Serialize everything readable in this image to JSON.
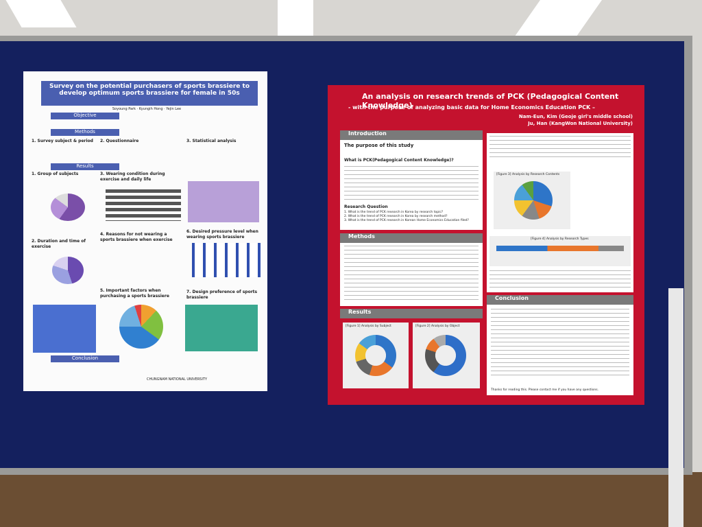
{
  "left_poster": {
    "title": "Survey on the potential purchasers of sports brassiere to develop optimum sports brassiere for female in 50s",
    "authors": "Soyoung Park · Kyungih Hong · Yejin Lee",
    "sections": [
      "Objective",
      "Methods",
      "Results",
      "Conclusion"
    ],
    "subsections": [
      "1. Survey subject & period",
      "2. Questionnaire",
      "3. Statistical analysis",
      "1. Group of subjects",
      "2. Duration and time of exercise",
      "3. Wearing condition during exercise and daily life",
      "4. Reasons for not wearing a sports brassiere when exercise",
      "5. Important factors when purchasing a sports brassiere",
      "6. Desired pressure level when wearing sports brassiere",
      "7. Design preference of sports brassiere"
    ],
    "footer": "CHUNGNAM NATIONAL UNIVERSITY"
  },
  "right_poster": {
    "title": "An analysis on research trends of PCK (Pedagogical Content Knowledge)",
    "subtitle": "- with the purpose of analyzing basic data for Home Economics Education PCK –",
    "authors": [
      "Nam-Eun, Kim (Geoje girl's middle school)",
      "Ju, Han (KangWon National University)"
    ],
    "sections": [
      "Introduction",
      "Methods",
      "Results",
      "Conclusion"
    ],
    "intro_items": [
      "The purpose of this study",
      "What is PCK(Pedagogical Content Knowledge)?",
      "Research Question"
    ],
    "questions": [
      "1. What is the trend of PCK research in Korea by research topic?",
      "2. What is the trend of PCK research in Korea by research method?",
      "3. What is the trend of PCK research in Korean Home Economics Education filed?"
    ],
    "figures": [
      "[Figure 1] Analysis by Subject",
      "[Figure 2] Analysis by Object",
      "[Figure 3] Analysis by Research Contents",
      "[Figure 4] Analysis by Research Types"
    ],
    "thanks": "Thanks for reading this. Please contact me if you have any questions."
  }
}
